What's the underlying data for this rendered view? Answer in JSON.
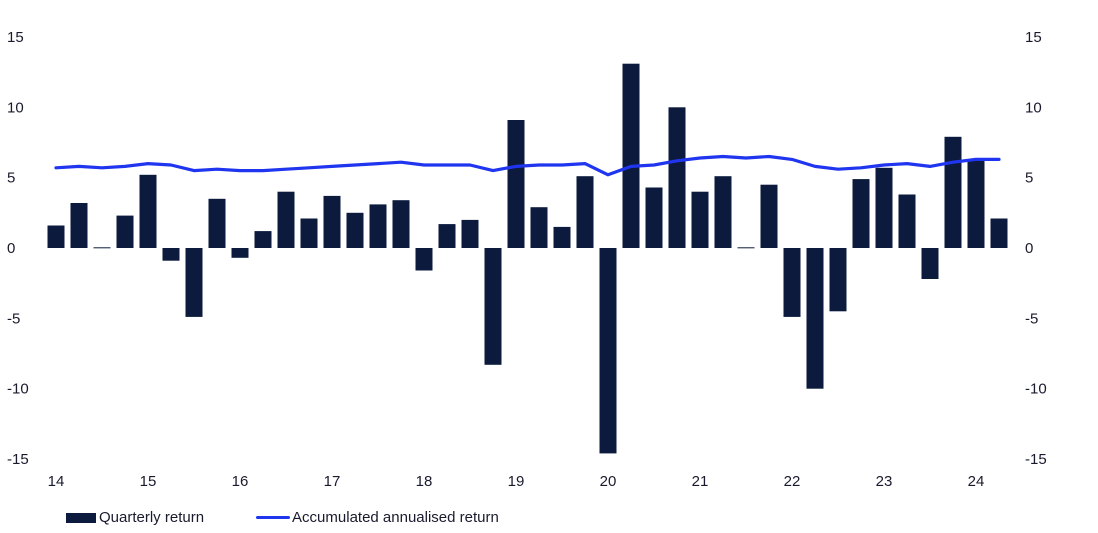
{
  "chart_data": {
    "type": "bar+line",
    "title": "",
    "xlabel": "",
    "ylabel": "",
    "ylim": [
      -15,
      15
    ],
    "y_ticks": [
      "15",
      "10",
      "5",
      "0",
      "-5",
      "-10",
      "-15"
    ],
    "y_right_ticks": [
      "15",
      "10",
      "5",
      "0",
      "-5",
      "-10",
      "-15"
    ],
    "x_tick_labels": [
      "14",
      "15",
      "16",
      "17",
      "18",
      "19",
      "20",
      "21",
      "22",
      "23",
      "24"
    ],
    "quarters_per_year": 4,
    "grid": false,
    "legend_position": "bottom-left",
    "series": [
      {
        "name": "Quarterly return",
        "kind": "bar",
        "color": "#0b1a3d",
        "values": [
          1.6,
          3.2,
          0.05,
          2.3,
          5.2,
          -0.9,
          -4.9,
          3.5,
          -0.7,
          1.2,
          4.0,
          2.1,
          3.7,
          2.5,
          3.1,
          3.4,
          -1.6,
          1.7,
          2.0,
          -8.3,
          9.1,
          2.9,
          1.5,
          5.1,
          -14.6,
          13.1,
          4.3,
          10.0,
          4.0,
          5.1,
          0.05,
          4.5,
          -4.9,
          -10.0,
          -4.5,
          4.9,
          5.7,
          3.8,
          -2.2,
          7.9,
          6.3,
          2.1
        ]
      },
      {
        "name": "Accumulated annualised return",
        "kind": "line",
        "color": "#1f35f0",
        "values": [
          5.7,
          5.8,
          5.7,
          5.8,
          6.0,
          5.9,
          5.5,
          5.6,
          5.5,
          5.5,
          5.6,
          5.7,
          5.8,
          5.9,
          6.0,
          6.1,
          5.9,
          5.9,
          5.9,
          5.5,
          5.8,
          5.9,
          5.9,
          6.0,
          5.2,
          5.8,
          5.9,
          6.2,
          6.4,
          6.5,
          6.4,
          6.5,
          6.3,
          5.8,
          5.6,
          5.7,
          5.9,
          6.0,
          5.8,
          6.1,
          6.3,
          6.3
        ]
      }
    ]
  },
  "legend": {
    "bar_label": "Quarterly return",
    "line_label": "Accumulated annualised return"
  }
}
